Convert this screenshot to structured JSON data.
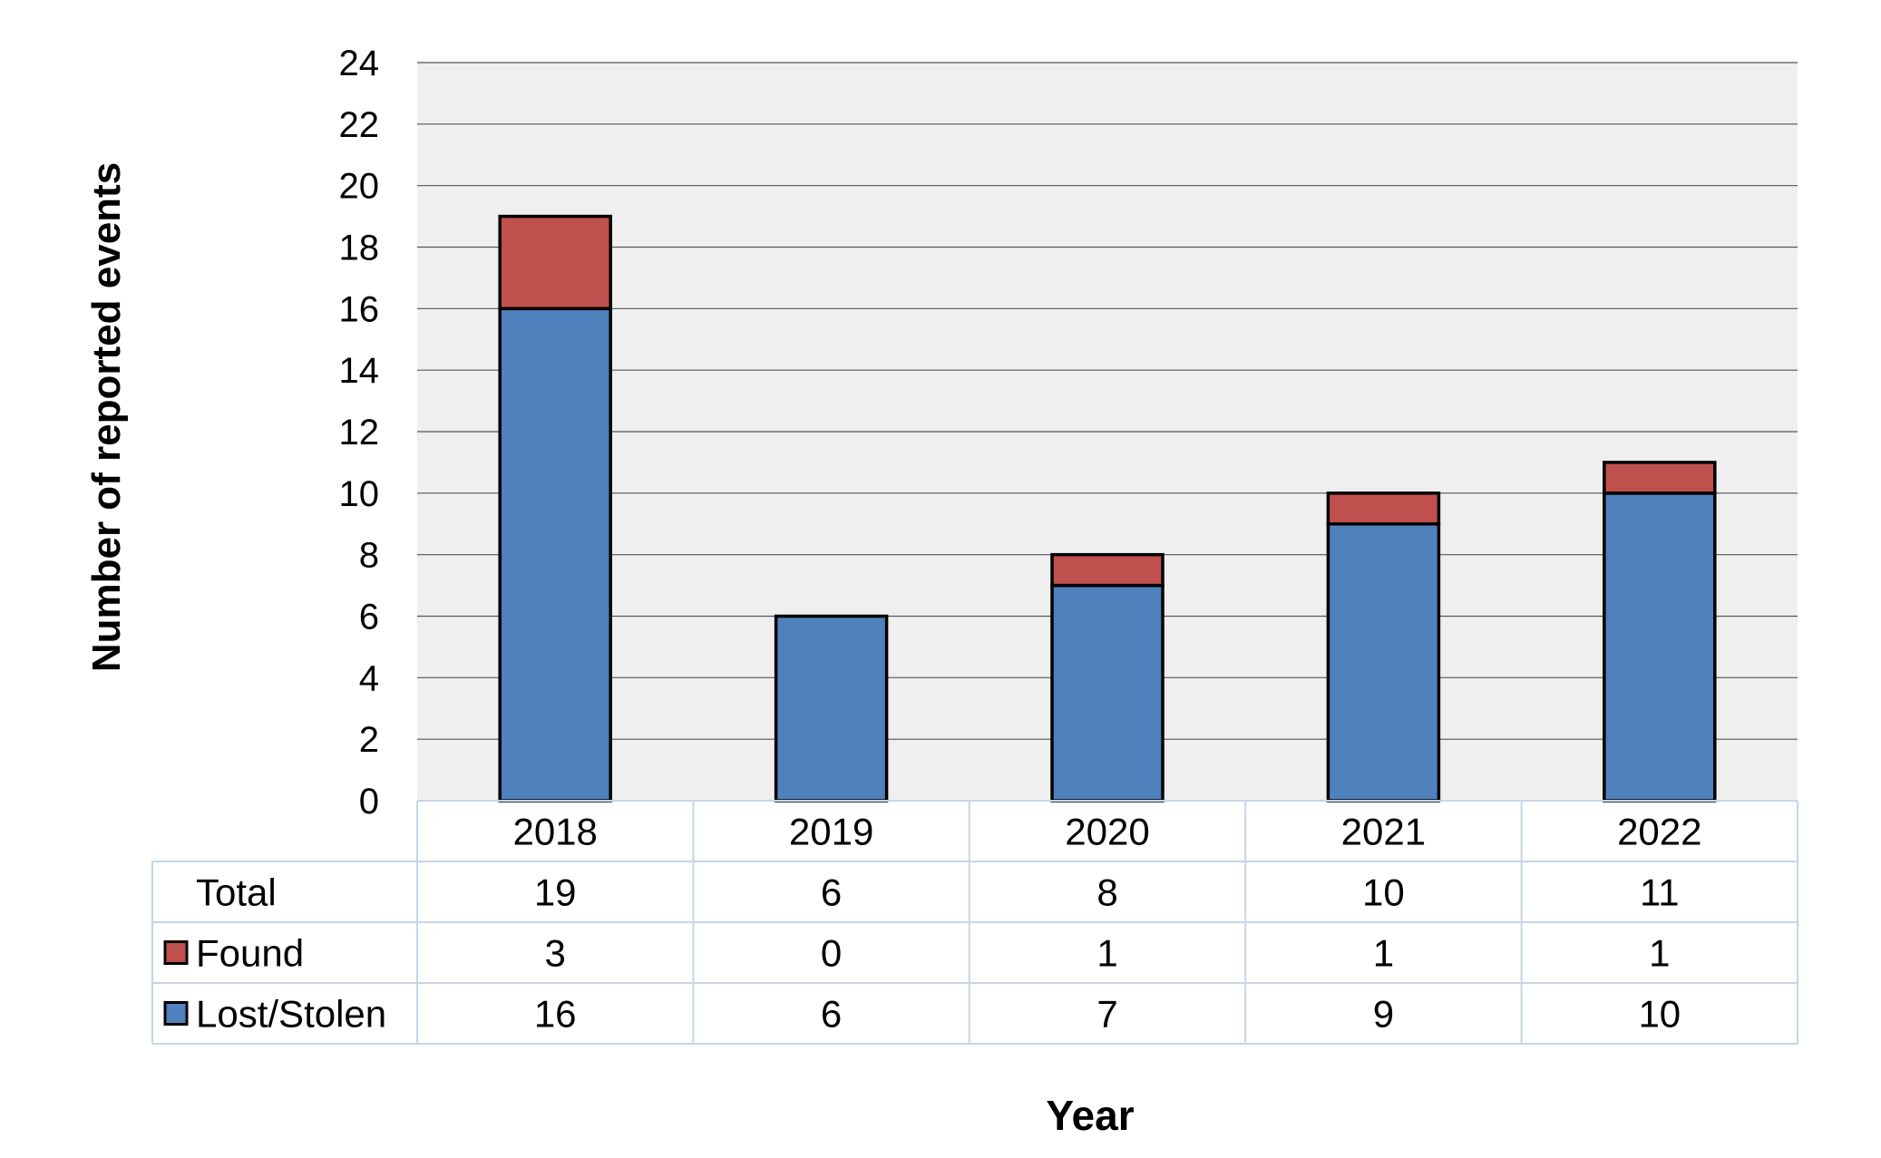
{
  "chart_data": {
    "type": "bar",
    "stacked": true,
    "categories": [
      "2018",
      "2019",
      "2020",
      "2021",
      "2022"
    ],
    "series": [
      {
        "name": "Lost/Stolen",
        "values": [
          16,
          6,
          7,
          9,
          10
        ],
        "color": "#4f81bd"
      },
      {
        "name": "Found",
        "values": [
          3,
          0,
          1,
          1,
          1
        ],
        "color": "#c0504d"
      }
    ],
    "totals": {
      "label": "Total",
      "values": [
        "19",
        "6",
        "8",
        "10",
        "11"
      ]
    },
    "data_table": {
      "rows": [
        {
          "label": "Total",
          "values": [
            "19",
            "6",
            "8",
            "10",
            "11"
          ]
        },
        {
          "label": "Found",
          "values": [
            "3",
            "0",
            "1",
            "1",
            "1"
          ]
        },
        {
          "label": "Lost/Stolen",
          "values": [
            "16",
            "6",
            "7",
            "9",
            "10"
          ]
        }
      ]
    },
    "ylabel": "Number of reported events",
    "xlabel": "Year",
    "ylim": [
      0,
      24
    ],
    "yticks": [
      "0",
      "2",
      "4",
      "6",
      "8",
      "10",
      "12",
      "14",
      "16",
      "18",
      "20",
      "22",
      "24"
    ],
    "grid": true,
    "legend": "data table",
    "plot_background": "#efefef"
  }
}
